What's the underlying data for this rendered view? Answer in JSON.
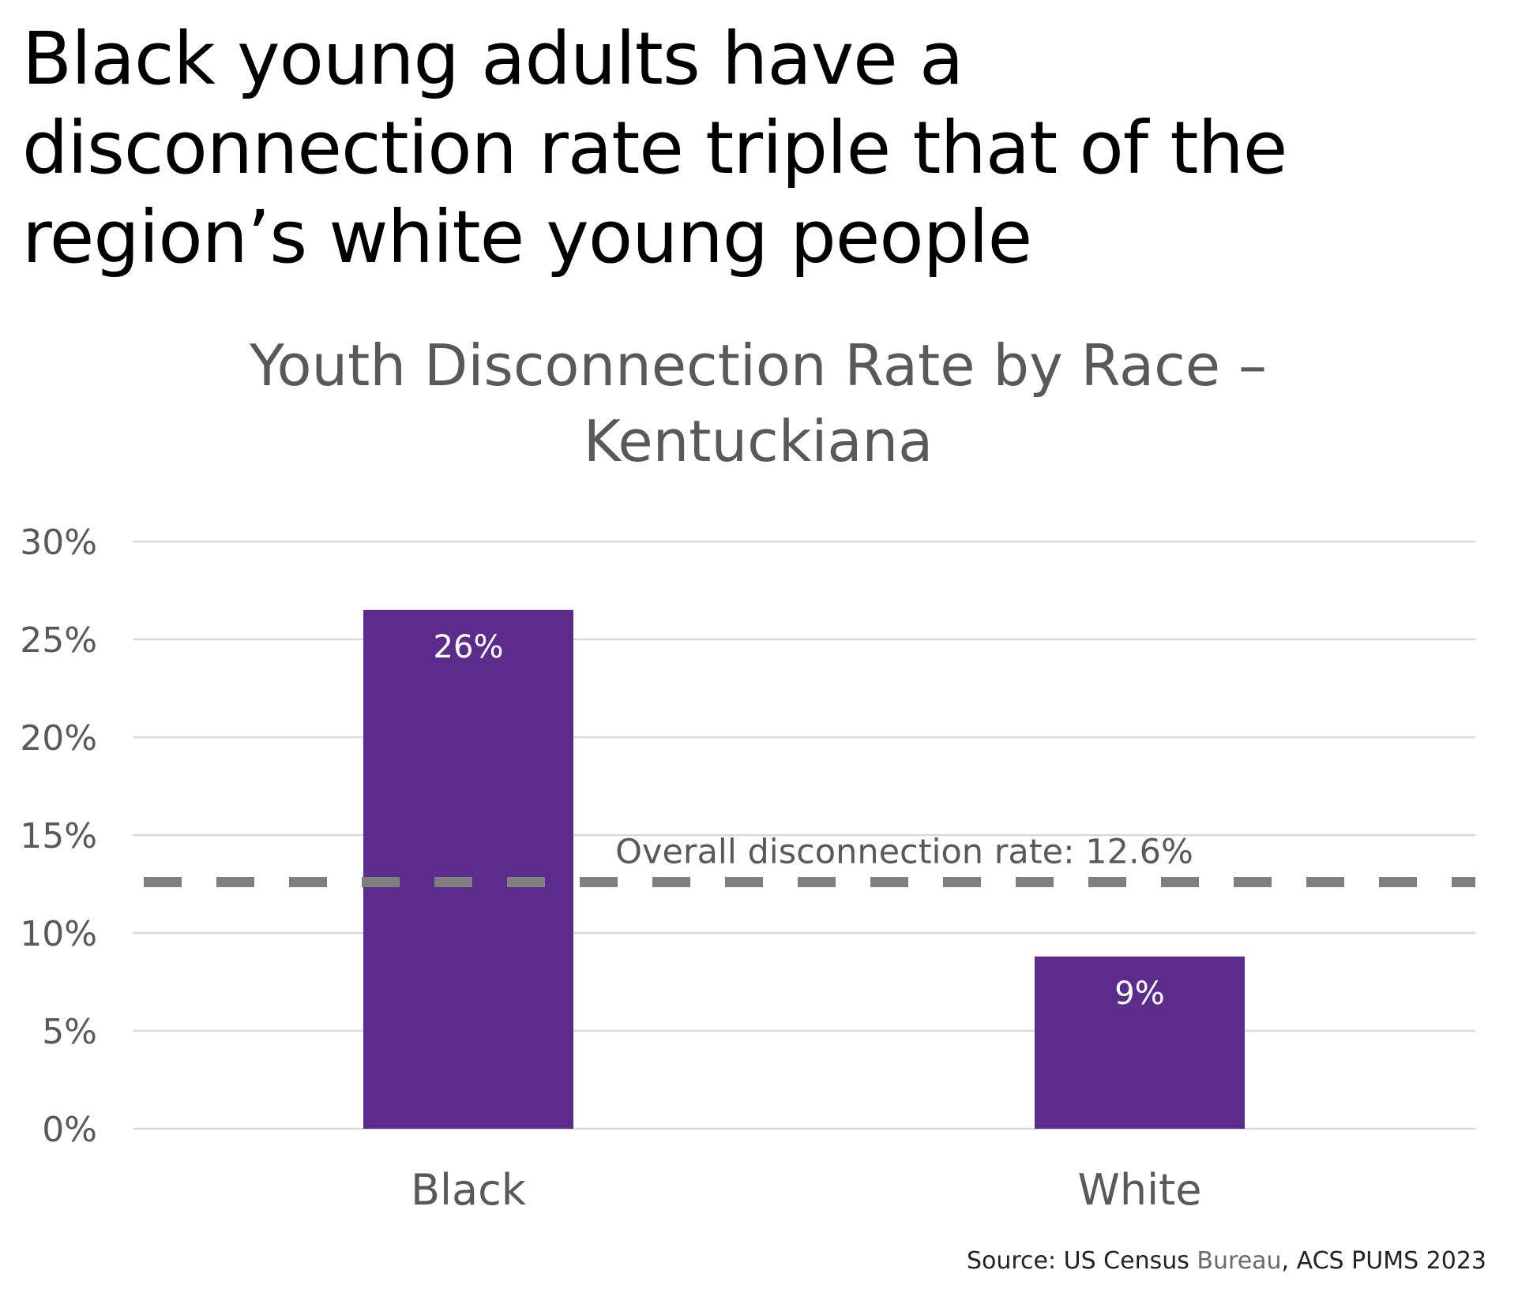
{
  "headline": {
    "lines": [
      "Black young adults have a",
      "disconnection rate triple that of the",
      "region’s white young people"
    ]
  },
  "source": {
    "prefix": "Source: US Census ",
    "muted": "Bureau",
    "suffix": ", ACS PUMS 2023"
  },
  "colors": {
    "bar": "#5b2c8b",
    "reference_line": "#7f7f7f",
    "gridline": "#d9d9d9",
    "axis_text": "#595959"
  },
  "chart_data": {
    "type": "bar",
    "title": "Youth Disconnection Rate by Race – Kentuckiana",
    "title_lines": [
      "Youth Disconnection Rate by Race –",
      "Kentuckiana"
    ],
    "xlabel": "",
    "ylabel": "",
    "categories": [
      "Black",
      "White"
    ],
    "values": [
      26.5,
      8.8
    ],
    "data_labels": [
      "26%",
      "9%"
    ],
    "ylim": [
      0,
      30
    ],
    "yticks": [
      0,
      5,
      10,
      15,
      20,
      25,
      30
    ],
    "ytick_labels": [
      "0%",
      "5%",
      "10%",
      "15%",
      "20%",
      "25%",
      "30%"
    ],
    "grid": true,
    "legend": "none",
    "reference_line": {
      "value": 12.6,
      "label": "Overall disconnection rate: 12.6%",
      "style": "dashed"
    }
  }
}
